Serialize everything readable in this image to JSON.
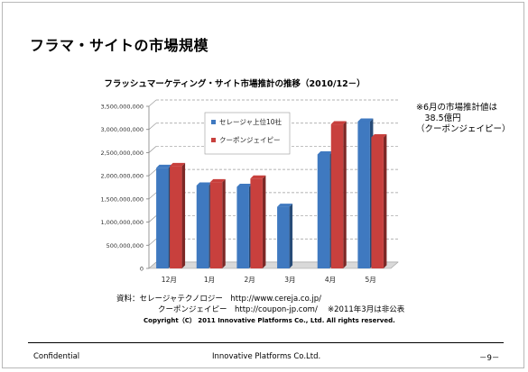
{
  "slide_title": "フラマ・サイトの市場規模",
  "chart_data": {
    "type": "bar",
    "title": "フラッシュマーケティング・サイト市場推計の推移（2010/12－）",
    "categories": [
      "12月",
      "1月",
      "2月",
      "3月",
      "4月",
      "5月"
    ],
    "series": [
      {
        "name": "セレージャ上位10社",
        "color": "#3f79c0",
        "values": [
          2170000000,
          1790000000,
          1760000000,
          1330000000,
          2460000000,
          3170000000
        ]
      },
      {
        "name": "クーポンジェイピー",
        "color": "#c8403d",
        "values": [
          2210000000,
          1860000000,
          1940000000,
          null,
          3110000000,
          2830000000
        ]
      }
    ],
    "ylim": [
      0,
      3500000000
    ],
    "yticks": [
      0,
      500000000,
      1000000000,
      1500000000,
      2000000000,
      2500000000,
      3000000000,
      3500000000
    ],
    "ytick_labels": [
      "0",
      "500,000,000",
      "1,000,000,000",
      "1,500,000,000",
      "2,000,000,000",
      "2,500,000,000",
      "3,000,000,000",
      "3,500,000,000"
    ],
    "grid": true,
    "legend_position": "top-left inside plot"
  },
  "annotation": "※6月の市場推計値は\n　38.5億円\n（クーポンジェイピー）",
  "source_line_1": "資料：セレージャテクノロジー　http://www.cereja.co.jp/",
  "source_line_2": "クーポンジェイピー　http://coupon-jp.com/　 ※2011年3月は非公表",
  "copyright": "Copyright（C） 2011 Innovative Platforms Co., Ltd. All rights reserved.",
  "footer": {
    "left": "Confidential",
    "center": "Innovative Platforms Co.Ltd.",
    "page": "－9－"
  }
}
